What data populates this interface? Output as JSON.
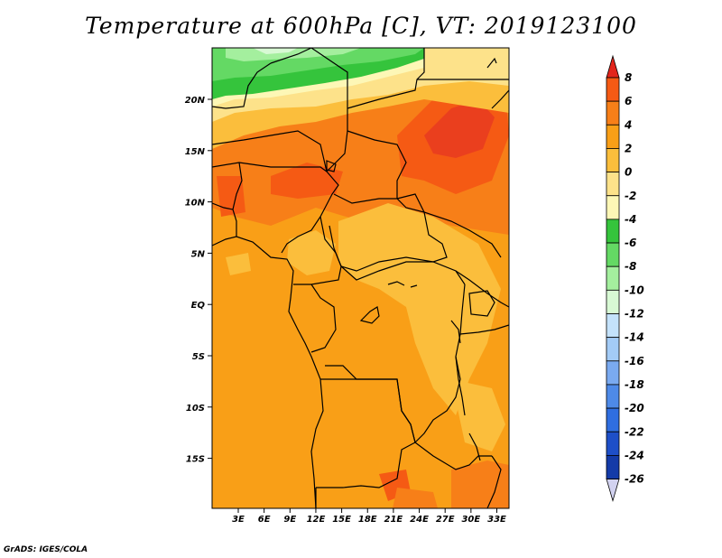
{
  "title": "Temperature at 600hPa [C], VT: 2019123100",
  "credit": "GrADS: IGES/COLA",
  "map": {
    "lon_labels": [
      "3E",
      "6E",
      "9E",
      "12E",
      "15E",
      "18E",
      "21E",
      "24E",
      "27E",
      "30E",
      "33E"
    ],
    "lat_labels": [
      "20N",
      "15N",
      "10N",
      "5N",
      "EQ",
      "5S",
      "10S",
      "15S"
    ]
  },
  "colorbar": {
    "labels": [
      "8",
      "6",
      "4",
      "2",
      "0",
      "-2",
      "-4",
      "-6",
      "-8",
      "-10",
      "-12",
      "-14",
      "-16",
      "-18",
      "-20",
      "-22",
      "-24",
      "-26"
    ],
    "colors": [
      "#e8332a",
      "#f55a14",
      "#f77f18",
      "#f99f17",
      "#fbbe3c",
      "#fde28a",
      "#fdf7b6",
      "#35c43c",
      "#64d964",
      "#a4ef9e",
      "#d8f9d4",
      "#c4e2fb",
      "#a3cbf6",
      "#7aaaf0",
      "#4e8ae8",
      "#2f6ee0",
      "#1e4fc8",
      "#143ba8",
      "#0e1a80",
      "#d8d8ef"
    ],
    "top_arrow_color": "#e2251c",
    "bottom_arrow_color": "#d2d2f0"
  },
  "field_colors": {
    "ocean_main": "#f99f17",
    "warm": "#f77f18",
    "hot": "#f55a14",
    "hottest": "#ea3f1e",
    "cool": "#fbbe3c",
    "pale": "#fde28a",
    "paler": "#fdf7b6",
    "green": "#35c43c",
    "lightgreen": "#64d964",
    "palegreen": "#a4ef9e"
  }
}
